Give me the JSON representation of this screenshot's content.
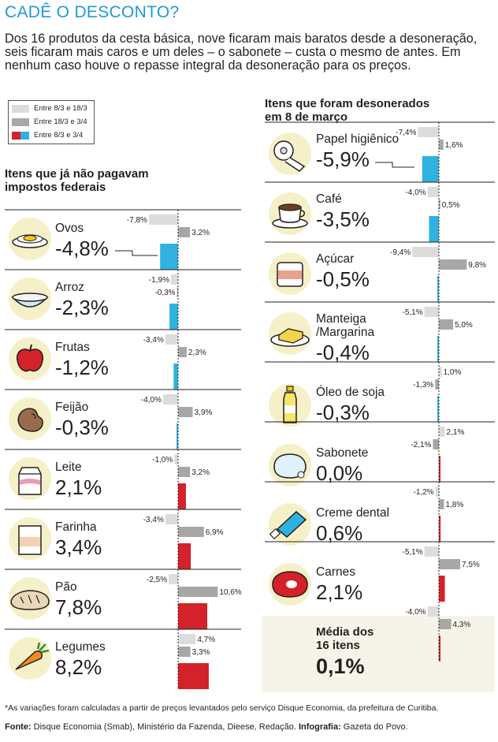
{
  "title": "CADÊ O DESCONTO?",
  "intro": "Dos 16 produtos da cesta básica, nove ficaram mais baratos desde a desoneração, seis ficaram mais caros e um deles – o sabonete – custa o mesmo de antes. Em nenhum caso houve o repasse integral da desoneração para os preços.",
  "legend": [
    {
      "label": "Entre 8/3 e 18/3",
      "color": "#dcdcdc"
    },
    {
      "label": "Entre 18/3 e 3/4",
      "color": "#a7a7a6"
    },
    {
      "label": "Entre 8/3 e 3/4",
      "color_pos": "#d3222a",
      "color_neg": "#2fb2e0"
    }
  ],
  "colors": {
    "p1": "#dcdcdc",
    "p2": "#a7a7a6",
    "pos": "#d3222a",
    "neg": "#2fb2e0"
  },
  "left_title_1": "Itens que já não pagavam",
  "left_title_2": "impostos federais",
  "right_title_1": "Itens que foram desonerados",
  "right_title_2": "em 8 de março",
  "avg_label_1": "Média dos",
  "avg_label_2": "16 itens",
  "avg_pct": "0,1%",
  "note": "*As variações foram calculadas a partir de preços levantados pelo serviço Disque Economia, da prefeitura de Curitiba.",
  "source_label": "Fonte:",
  "source_text": " Disque Economia (Smab), Ministério da Fazenda, Dieese, Redação. ",
  "credit_label": "Infografia:",
  "credit_text": " Gazeta do Povo.",
  "chart_data": [
    {
      "type": "bar",
      "title": "Itens que já não pagavam impostos federais",
      "series_names": [
        "Entre 8/3 e 18/3",
        "Entre 18/3 e 3/4",
        "Entre 8/3 e 3/4"
      ],
      "items": [
        {
          "name": "Ovos",
          "total_label": "-4,8%",
          "total": -4.8,
          "p1": -7.8,
          "p2": 3.2,
          "p1_label": "-7,8%",
          "p2_label": "3,2%",
          "icon": "egg-icon"
        },
        {
          "name": "Arroz",
          "total_label": "-2,3%",
          "total": -2.3,
          "p1": -1.9,
          "p2": -0.3,
          "p1_label": "-1,9%",
          "p2_label": "-0,3%",
          "icon": "rice-bowl-icon"
        },
        {
          "name": "Frutas",
          "total_label": "-1,2%",
          "total": -1.2,
          "p1": -3.4,
          "p2": 2.3,
          "p1_label": "-3,4%",
          "p2_label": "2,3%",
          "icon": "apple-icon"
        },
        {
          "name": "Feijão",
          "total_label": "-0,3%",
          "total": -0.3,
          "p1": -4.0,
          "p2": 3.9,
          "p1_label": "-4,0%",
          "p2_label": "3,9%",
          "icon": "bean-icon"
        },
        {
          "name": "Leite",
          "total_label": "2,1%",
          "total": 2.1,
          "p1": -1.0,
          "p2": 3.2,
          "p1_label": "-1,0%",
          "p2_label": "3,2%",
          "icon": "milk-carton-icon"
        },
        {
          "name": "Farinha",
          "total_label": "3,4%",
          "total": 3.4,
          "p1": -3.4,
          "p2": 6.9,
          "p1_label": "-3,4%",
          "p2_label": "6,9%",
          "icon": "flour-bag-icon"
        },
        {
          "name": "Pão",
          "total_label": "7,8%",
          "total": 7.8,
          "p1": -2.5,
          "p2": 10.6,
          "p1_label": "-2,5%",
          "p2_label": "10,6%",
          "icon": "bread-icon"
        },
        {
          "name": "Legumes",
          "total_label": "8,2%",
          "total": 8.2,
          "p1": 4.7,
          "p2": 3.3,
          "p1_label": "4,7%",
          "p2_label": "3,3%",
          "icon": "carrot-icon"
        }
      ]
    },
    {
      "type": "bar",
      "title": "Itens que foram desonerados em 8 de março",
      "series_names": [
        "Entre 8/3 e 18/3",
        "Entre 18/3 e 3/4",
        "Entre 8/3 e 3/4"
      ],
      "items": [
        {
          "name": "Papel higiênico",
          "total_label": "-5,9%",
          "total": -5.9,
          "p1": -7.4,
          "p2": 1.6,
          "p1_label": "-7,4%",
          "p2_label": "1,6%",
          "icon": "toilet-paper-icon"
        },
        {
          "name": "Café",
          "total_label": "-3,5%",
          "total": -3.5,
          "p1": -4.0,
          "p2": 0.5,
          "p1_label": "-4,0%",
          "p2_label": "0,5%",
          "icon": "coffee-cup-icon"
        },
        {
          "name": "Açúcar",
          "total_label": "-0,5%",
          "total": -0.5,
          "p1": -9.4,
          "p2": 9.8,
          "p1_label": "-9,4%",
          "p2_label": "9,8%",
          "icon": "sugar-bag-icon"
        },
        {
          "name": "Manteiga /Margarina",
          "name_1": "Manteiga",
          "name_2": "/Margarina",
          "total_label": "-0,4%",
          "total": -0.4,
          "p1": -5.1,
          "p2": 5.0,
          "p1_label": "-5,1%",
          "p2_label": "5,0%",
          "icon": "butter-icon"
        },
        {
          "name": "Óleo de soja",
          "total_label": "-0,3%",
          "total": -0.3,
          "p1": 1.0,
          "p2": -1.3,
          "p1_label": "1,0%",
          "p2_label": "-1,3%",
          "icon": "oil-bottle-icon"
        },
        {
          "name": "Sabonete",
          "total_label": "0,0%",
          "total": 0.0,
          "p1": 2.1,
          "p2": -2.1,
          "p1_label": "2,1%",
          "p2_label": "-2,1%",
          "icon": "soap-icon"
        },
        {
          "name": "Creme dental",
          "total_label": "0,6%",
          "total": 0.6,
          "p1": -1.2,
          "p2": 1.8,
          "p1_label": "-1,2%",
          "p2_label": "1,8%",
          "icon": "toothpaste-icon"
        },
        {
          "name": "Carnes",
          "total_label": "2,1%",
          "total": 2.1,
          "p1": -5.1,
          "p2": 7.5,
          "p1_label": "-5,1%",
          "p2_label": "7,5%",
          "icon": "meat-icon"
        },
        {
          "name": "Média dos 16 itens",
          "total_label": "0,1%",
          "total": 0.1,
          "p1": -4.0,
          "p2": 4.3,
          "p1_label": "-4,0%",
          "p2_label": "4,3%",
          "icon": "",
          "is_average": true
        }
      ]
    }
  ]
}
